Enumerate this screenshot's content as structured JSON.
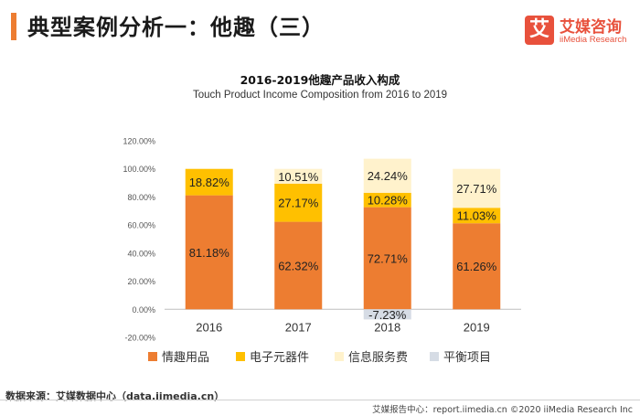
{
  "header": {
    "title": "典型案例分析一：他趣（三）"
  },
  "logo": {
    "glyph": "艾",
    "name_cn": "艾媒咨询",
    "name_en": "iiMedia Research",
    "color": "#e8513c"
  },
  "chart_data": {
    "type": "bar",
    "stacked": true,
    "title": "2016-2019他趣产品收入构成",
    "subtitle": "Touch Product Income Composition from 2016 to 2019",
    "categories": [
      "2016",
      "2017",
      "2018",
      "2019"
    ],
    "ylim": [
      -20,
      120
    ],
    "yticks": [
      "-20.00%",
      "0.00%",
      "20.00%",
      "40.00%",
      "60.00%",
      "80.00%",
      "100.00%",
      "120.00%"
    ],
    "ytick_values": [
      -20,
      0,
      20,
      40,
      60,
      80,
      100,
      120
    ],
    "unit": "%",
    "grid": false,
    "legend_position": "bottom",
    "series": [
      {
        "name": "情趣用品",
        "color": "#ed7d31",
        "values": [
          81.18,
          62.32,
          72.71,
          61.26
        ],
        "labels": [
          "81.18%",
          "62.32%",
          "72.71%",
          "61.26%"
        ]
      },
      {
        "name": "电子元器件",
        "color": "#ffc000",
        "values": [
          18.82,
          27.17,
          10.28,
          11.03
        ],
        "labels": [
          "18.82%",
          "27.17%",
          "10.28%",
          "11.03%"
        ]
      },
      {
        "name": "信息服务费",
        "color": "#fff2cc",
        "values": [
          0,
          10.51,
          24.24,
          27.71
        ],
        "labels": [
          "",
          "10.51%",
          "24.24%",
          "27.71%"
        ]
      },
      {
        "name": "平衡项目",
        "color": "#d6dce5",
        "values": [
          0,
          0,
          -7.23,
          0
        ],
        "labels": [
          "",
          "",
          "-7.23%",
          ""
        ]
      }
    ]
  },
  "footer": {
    "source": "数据来源：艾媒数据中心（data.iimedia.cn）",
    "copyright": "艾媒报告中心：report.iimedia.cn  ©2020  iiMedia Research  Inc"
  }
}
